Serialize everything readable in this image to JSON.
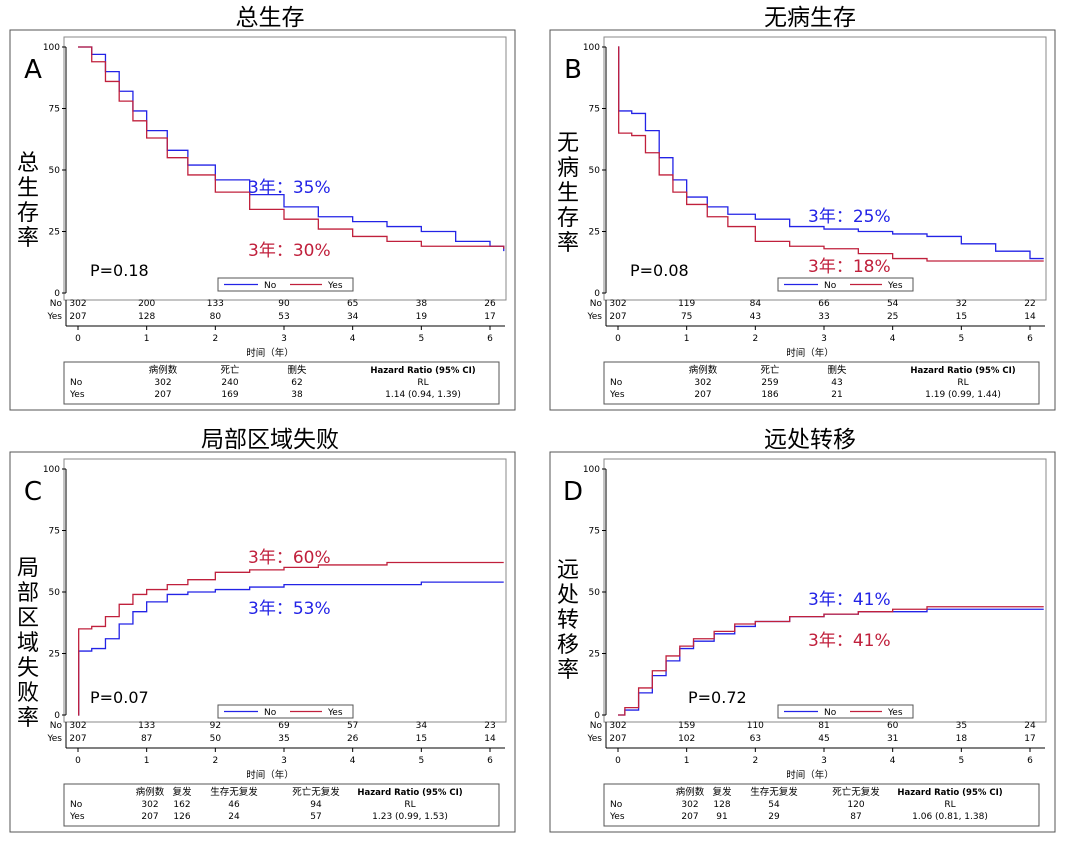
{
  "colors": {
    "no": "#2323e6",
    "yes": "#c0203c"
  },
  "x_axis_label": "时间（年）",
  "legend_labels": [
    "No",
    "Yes"
  ],
  "risk_row_labels": [
    "No",
    "Yes"
  ],
  "chart_data": [
    {
      "type": "line",
      "title": "总生存",
      "panel_label": "A",
      "ylabel": "总生存率",
      "xlabel": "时间（年）",
      "x_ticks": [
        "0",
        "1",
        "2",
        "3",
        "4",
        "5",
        "6"
      ],
      "y_ticks": [
        "0",
        "25",
        "50",
        "75",
        "100"
      ],
      "xlim": [
        0,
        6.2
      ],
      "ylim": [
        0,
        100
      ],
      "p_value": "P=0.18",
      "annotations": [
        {
          "text": "3年：35%",
          "series": "No"
        },
        {
          "text": "3年：30%",
          "series": "Yes"
        }
      ],
      "series": [
        {
          "name": "No",
          "x": [
            0,
            0.2,
            0.4,
            0.6,
            0.8,
            1,
            1.3,
            1.6,
            2,
            2.5,
            3,
            3.5,
            4,
            4.5,
            5,
            5.5,
            6,
            6.2
          ],
          "y": [
            100,
            97,
            90,
            82,
            74,
            66,
            58,
            52,
            46,
            40,
            35,
            31,
            29,
            27,
            25,
            21,
            19,
            17
          ]
        },
        {
          "name": "Yes",
          "x": [
            0,
            0.2,
            0.4,
            0.6,
            0.8,
            1,
            1.3,
            1.6,
            2,
            2.5,
            3,
            3.5,
            4,
            4.5,
            5,
            5.5,
            6,
            6.2
          ],
          "y": [
            100,
            94,
            86,
            78,
            70,
            63,
            55,
            48,
            41,
            34,
            30,
            26,
            23,
            21,
            19,
            19,
            19,
            18
          ]
        }
      ],
      "risk_table": {
        "x": [
          "0",
          "1",
          "2",
          "3",
          "4",
          "5",
          "6"
        ],
        "No": [
          "302",
          "200",
          "133",
          "90",
          "65",
          "38",
          "26"
        ],
        "Yes": [
          "207",
          "128",
          "80",
          "53",
          "34",
          "19",
          "17"
        ]
      },
      "summary_table": {
        "headers": [
          "病例数",
          "死亡",
          "删失",
          "Hazard Ratio (95% CI)"
        ],
        "rows": [
          [
            "No",
            "302",
            "240",
            "62",
            "RL"
          ],
          [
            "Yes",
            "207",
            "169",
            "38",
            "1.14 (0.94, 1.39)"
          ]
        ]
      }
    },
    {
      "type": "line",
      "title": "无病生存",
      "panel_label": "B",
      "ylabel": "无病生存率",
      "xlabel": "时间（年）",
      "x_ticks": [
        "0",
        "1",
        "2",
        "3",
        "4",
        "5",
        "6"
      ],
      "y_ticks": [
        "0",
        "25",
        "50",
        "75",
        "100"
      ],
      "xlim": [
        0,
        6.2
      ],
      "ylim": [
        0,
        100
      ],
      "p_value": "P=0.08",
      "annotations": [
        {
          "text": "3年：25%",
          "series": "No"
        },
        {
          "text": "3年：18%",
          "series": "Yes"
        }
      ],
      "series": [
        {
          "name": "No",
          "x": [
            0,
            0.01,
            0.2,
            0.4,
            0.6,
            0.8,
            1,
            1.3,
            1.6,
            2,
            2.5,
            3,
            3.5,
            4,
            4.5,
            5,
            5.5,
            6,
            6.2
          ],
          "y": [
            100,
            74,
            73,
            66,
            55,
            46,
            39,
            35,
            32,
            30,
            27,
            26,
            25,
            24,
            23,
            20,
            17,
            14,
            14
          ]
        },
        {
          "name": "Yes",
          "x": [
            0,
            0.01,
            0.2,
            0.4,
            0.6,
            0.8,
            1,
            1.3,
            1.6,
            2,
            2.5,
            3,
            3.5,
            4,
            4.5,
            5,
            5.5,
            6,
            6.2
          ],
          "y": [
            100,
            65,
            64,
            57,
            48,
            41,
            36,
            31,
            27,
            21,
            19,
            18,
            16,
            14,
            13,
            13,
            13,
            13,
            13
          ]
        }
      ],
      "risk_table": {
        "x": [
          "0",
          "1",
          "2",
          "3",
          "4",
          "5",
          "6"
        ],
        "No": [
          "302",
          "119",
          "84",
          "66",
          "54",
          "32",
          "22"
        ],
        "Yes": [
          "207",
          "75",
          "43",
          "33",
          "25",
          "15",
          "14"
        ]
      },
      "summary_table": {
        "headers": [
          "病例数",
          "死亡",
          "删失",
          "Hazard Ratio (95% CI)"
        ],
        "rows": [
          [
            "No",
            "302",
            "259",
            "43",
            "RL"
          ],
          [
            "Yes",
            "207",
            "186",
            "21",
            "1.19 (0.99, 1.44)"
          ]
        ]
      }
    },
    {
      "type": "line",
      "title": "局部区域失败",
      "panel_label": "C",
      "ylabel": "局部区域失败率",
      "xlabel": "时间（年）",
      "x_ticks": [
        "0",
        "1",
        "2",
        "3",
        "4",
        "5",
        "6"
      ],
      "y_ticks": [
        "0",
        "25",
        "50",
        "75",
        "100"
      ],
      "xlim": [
        0,
        6.2
      ],
      "ylim": [
        0,
        100
      ],
      "p_value": "P=0.07",
      "annotations": [
        {
          "text": "3年：60%",
          "series": "Yes"
        },
        {
          "text": "3年：53%",
          "series": "No"
        }
      ],
      "series": [
        {
          "name": "No",
          "x": [
            0,
            0.01,
            0.2,
            0.4,
            0.6,
            0.8,
            1,
            1.3,
            1.6,
            2,
            2.5,
            3,
            3.5,
            4,
            4.5,
            5,
            5.5,
            6,
            6.2
          ],
          "y": [
            0,
            26,
            27,
            31,
            37,
            42,
            46,
            49,
            50,
            51,
            52,
            53,
            53,
            53,
            53,
            54,
            54,
            54,
            54
          ]
        },
        {
          "name": "Yes",
          "x": [
            0,
            0.01,
            0.2,
            0.4,
            0.6,
            0.8,
            1,
            1.3,
            1.6,
            2,
            2.5,
            3,
            3.5,
            4,
            4.5,
            5,
            5.5,
            6,
            6.2
          ],
          "y": [
            0,
            35,
            36,
            40,
            45,
            49,
            51,
            53,
            55,
            58,
            59,
            60,
            61,
            61,
            62,
            62,
            62,
            62,
            62
          ]
        }
      ],
      "risk_table": {
        "x": [
          "0",
          "1",
          "2",
          "3",
          "4",
          "5",
          "6"
        ],
        "No": [
          "302",
          "133",
          "92",
          "69",
          "57",
          "34",
          "23"
        ],
        "Yes": [
          "207",
          "87",
          "50",
          "35",
          "26",
          "15",
          "14"
        ]
      },
      "summary_table": {
        "headers": [
          "病例数",
          "复发",
          "生存无复发",
          "死亡无复发",
          "Hazard Ratio (95% CI)"
        ],
        "rows": [
          [
            "No",
            "302",
            "162",
            "46",
            "94",
            "RL"
          ],
          [
            "Yes",
            "207",
            "126",
            "24",
            "57",
            "1.23 (0.99, 1.53)"
          ]
        ]
      }
    },
    {
      "type": "line",
      "title": "远处转移",
      "panel_label": "D",
      "ylabel": "远处转移率",
      "xlabel": "时间（年）",
      "x_ticks": [
        "0",
        "1",
        "2",
        "3",
        "4",
        "5",
        "6"
      ],
      "y_ticks": [
        "0",
        "25",
        "50",
        "75",
        "100"
      ],
      "xlim": [
        0,
        6.2
      ],
      "ylim": [
        0,
        100
      ],
      "p_value": "P=0.72",
      "annotations": [
        {
          "text": "3年：41%",
          "series": "No"
        },
        {
          "text": "3年：41%",
          "series": "Yes"
        }
      ],
      "series": [
        {
          "name": "No",
          "x": [
            0,
            0.1,
            0.3,
            0.5,
            0.7,
            0.9,
            1.1,
            1.4,
            1.7,
            2,
            2.5,
            3,
            3.5,
            4,
            4.5,
            5,
            5.5,
            6,
            6.2
          ],
          "y": [
            0,
            2,
            9,
            16,
            22,
            27,
            30,
            33,
            36,
            38,
            40,
            41,
            42,
            42,
            43,
            43,
            43,
            43,
            43
          ]
        },
        {
          "name": "Yes",
          "x": [
            0,
            0.1,
            0.3,
            0.5,
            0.7,
            0.9,
            1.1,
            1.4,
            1.7,
            2,
            2.5,
            3,
            3.5,
            4,
            4.5,
            5,
            5.5,
            6,
            6.2
          ],
          "y": [
            0,
            3,
            11,
            18,
            24,
            28,
            31,
            34,
            37,
            38,
            40,
            41,
            42,
            43,
            44,
            44,
            44,
            44,
            44
          ]
        }
      ],
      "risk_table": {
        "x": [
          "0",
          "1",
          "2",
          "3",
          "4",
          "5",
          "6"
        ],
        "No": [
          "302",
          "159",
          "110",
          "81",
          "60",
          "35",
          "24"
        ],
        "Yes": [
          "207",
          "102",
          "63",
          "45",
          "31",
          "18",
          "17"
        ]
      },
      "summary_table": {
        "headers": [
          "病例数",
          "复发",
          "生存无复发",
          "死亡无复发",
          "Hazard Ratio (95% CI)"
        ],
        "rows": [
          [
            "No",
            "302",
            "128",
            "54",
            "120",
            "RL"
          ],
          [
            "Yes",
            "207",
            "91",
            "29",
            "87",
            "1.06 (0.81, 1.38)"
          ]
        ]
      }
    }
  ]
}
